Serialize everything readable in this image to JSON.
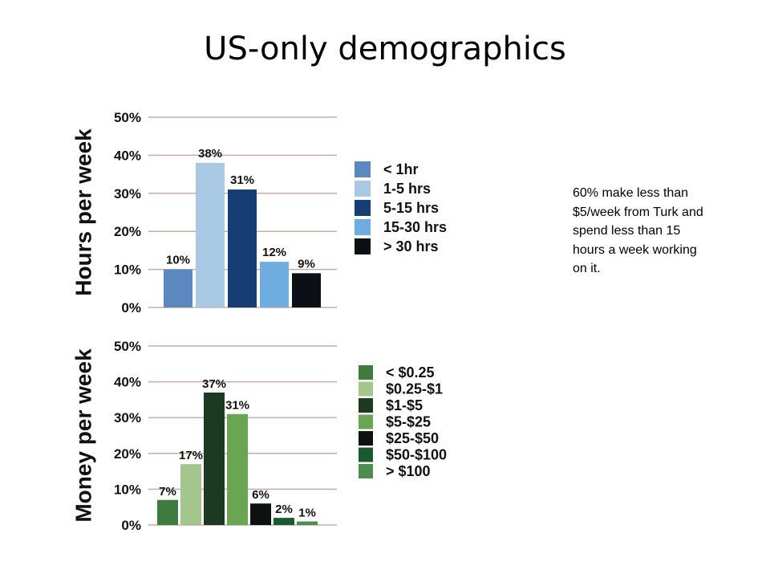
{
  "title": "US-only demographics",
  "note": "60% make less than $5/week from Turk and spend less than 15 hours a week working on it.",
  "chart_data": [
    {
      "type": "bar",
      "ylabel": "Hours per week",
      "ylim": [
        0,
        50
      ],
      "yticks": [
        "0%",
        "10%",
        "20%",
        "30%",
        "40%",
        "50%"
      ],
      "grid": true,
      "legend_position": "right",
      "categories": [
        "< 1hr",
        "1-5 hrs",
        "5-15 hrs",
        "15-30 hrs",
        "> 30 hrs"
      ],
      "values": [
        10,
        38,
        31,
        12,
        9
      ],
      "value_labels": [
        "10%",
        "38%",
        "31%",
        "12%",
        "9%"
      ],
      "colors": [
        "#5b88be",
        "#a8c8e4",
        "#173e73",
        "#6fade0",
        "#0d0f16"
      ]
    },
    {
      "type": "bar",
      "ylabel": "Money per week",
      "ylim": [
        0,
        50
      ],
      "yticks": [
        "0%",
        "10%",
        "20%",
        "30%",
        "40%",
        "50%"
      ],
      "grid": true,
      "legend_position": "right",
      "categories": [
        "< $0.25",
        "$0.25-$1",
        "$1-$5",
        "$5-$25",
        "$25-$50",
        "$50-$100",
        "> $100"
      ],
      "values": [
        7,
        17,
        37,
        31,
        6,
        2,
        1
      ],
      "value_labels": [
        "7%",
        "17%",
        "37%",
        "31%",
        "6%",
        "2%",
        "1%"
      ],
      "colors": [
        "#3f7a3e",
        "#a3c68f",
        "#1c3a22",
        "#6aa552",
        "#0e120f",
        "#1a5a30",
        "#4e8c50"
      ]
    }
  ]
}
